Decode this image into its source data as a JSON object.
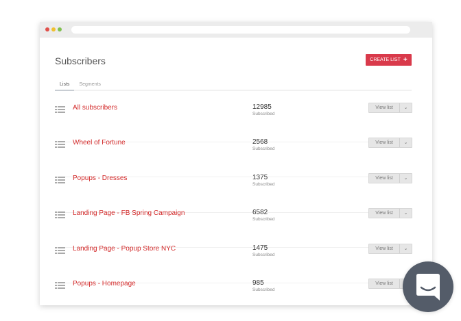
{
  "header": {
    "title": "Subscribers",
    "create_label": "CREATE LIST",
    "create_icon": "plus-icon"
  },
  "tabs": [
    {
      "label": "Lists",
      "active": true
    },
    {
      "label": "Segments",
      "active": false
    }
  ],
  "lists": [
    {
      "name": "All subscribers",
      "count": "12985",
      "count_label": "Subscribed",
      "action": "View list"
    },
    {
      "name": "Wheel of Fortune",
      "count": "2568",
      "count_label": "Subscribed",
      "action": "View list"
    },
    {
      "name": "Popups - Dresses",
      "count": "1375",
      "count_label": "Subscribed",
      "action": "View list"
    },
    {
      "name": "Landing Page - FB Spring Campaign",
      "count": "6582",
      "count_label": "Subscribed",
      "action": "View list"
    },
    {
      "name": "Landing Page - Popup Store NYC",
      "count": "1475",
      "count_label": "Subscribed",
      "action": "View list"
    },
    {
      "name": "Popups - Homepage",
      "count": "985",
      "count_label": "Subscribed",
      "action": "View list"
    }
  ],
  "colors": {
    "accent": "#d93a4b",
    "link": "#d32a2a",
    "chat": "#545c69"
  }
}
